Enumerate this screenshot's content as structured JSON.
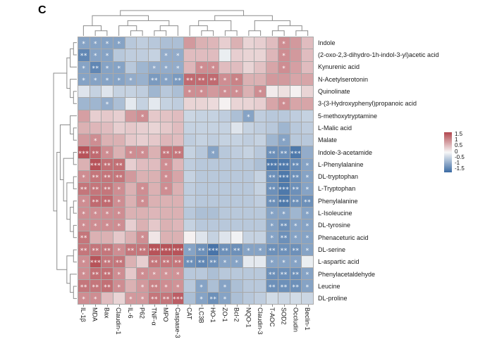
{
  "figure": {
    "panel_label": "C"
  },
  "colors": {
    "positive_max": "#b2474e",
    "midpoint": "#f7f7f7",
    "negative_max": "#3b6ba3",
    "grid_line": "#a9a9a9",
    "dendrogram_line": "#8c8c8c",
    "star": "#ffffff"
  },
  "legend": {
    "ticks": [
      "1.5",
      "1",
      "0.5",
      "0",
      "-0.5",
      "-1",
      "-1.5"
    ]
  },
  "chart_data": {
    "type": "heatmap",
    "title": "",
    "columns": [
      "IL-1β",
      "MDA",
      "Bax",
      "Claudin-1",
      "IL-6",
      "P62",
      "TNF-α",
      "MPO",
      "Caspase-3",
      "CAT",
      "LC3B",
      "HO-1",
      "ZO-1",
      "Bcl-2",
      "NQO-1",
      "Claudin-3",
      "T-AOC",
      "SOD2",
      "Occludin",
      "Beclin-1"
    ],
    "rows": [
      "Indole",
      "(2-oxo-2,3-dihydro-1h-indol-3-yl)acetic acid",
      "Kynurenic acid",
      "N-Acetylserotonin",
      "Quinolinate",
      "3-(3-Hydroxyphenyl)propanoic acid",
      "5-methoxytryptamine",
      "L-Malic acid",
      "Malate",
      "Indole-3-acetamide",
      "L-Phenylalanine",
      "DL-tryptophan",
      "L-Tryptophan",
      "Phenylalanine",
      "L-Isoleucine",
      "DL-tyrosine",
      "Phenaceturic acid",
      "DL-serine",
      "L-aspartic acid",
      "Phenylacetaldehyde",
      "Leucine",
      "DL-proline"
    ],
    "color_scale": {
      "min": -1.5,
      "max": 1.5,
      "legend_ticks": [
        1.5,
        1,
        0.5,
        0,
        -0.5,
        -1,
        -1.5
      ]
    },
    "values": [
      [
        -0.9,
        -0.9,
        -0.9,
        -0.9,
        -0.5,
        -0.45,
        -0.5,
        -0.6,
        -0.6,
        0.8,
        0.6,
        0.55,
        0.35,
        0.6,
        0.3,
        0.35,
        0.5,
        0.9,
        0.8,
        0.5
      ],
      [
        -1.2,
        -0.9,
        -0.9,
        -0.5,
        -0.45,
        -0.45,
        -0.4,
        -0.8,
        -0.8,
        0.5,
        0.5,
        0.5,
        -0.1,
        0.35,
        0.3,
        0.3,
        0.55,
        0.9,
        0.8,
        0.5
      ],
      [
        -0.9,
        -1.2,
        -0.9,
        -0.9,
        -0.5,
        -0.7,
        -0.8,
        -0.8,
        -0.8,
        0.55,
        0.9,
        0.9,
        0.5,
        0.5,
        0.3,
        0.45,
        0.7,
        0.9,
        0.75,
        0.5
      ],
      [
        -0.9,
        -0.9,
        -0.9,
        -0.9,
        -0.8,
        -0.75,
        -1.0,
        -0.9,
        -1.0,
        1.2,
        1.2,
        1.2,
        0.9,
        1.0,
        0.6,
        0.6,
        0.8,
        0.8,
        0.7,
        0.7
      ],
      [
        -0.2,
        -0.4,
        -0.2,
        -0.4,
        -0.4,
        -0.45,
        -0.7,
        -0.5,
        -0.6,
        0.9,
        0.9,
        0.8,
        0.9,
        0.9,
        0.6,
        0.9,
        0.1,
        0.2,
        0.05,
        0.3
      ],
      [
        -0.7,
        -0.7,
        -0.8,
        -0.6,
        -0.15,
        -0.4,
        -0.15,
        -0.4,
        -0.45,
        0.3,
        0.3,
        0.25,
        0.05,
        0.3,
        0.3,
        0.35,
        0.7,
        0.9,
        0.7,
        0.7
      ],
      [
        0.75,
        0.35,
        0.4,
        0.35,
        0.8,
        0.9,
        0.4,
        0.45,
        0.5,
        -0.35,
        -0.4,
        -0.4,
        -0.45,
        -0.6,
        -0.9,
        -0.45,
        -0.5,
        -0.5,
        -0.45,
        -0.4
      ],
      [
        0.6,
        0.55,
        0.5,
        0.35,
        0.4,
        0.35,
        0.3,
        0.4,
        0.5,
        -0.4,
        -0.4,
        -0.4,
        -0.4,
        -0.2,
        -0.4,
        -0.45,
        -0.5,
        -0.7,
        -0.5,
        -0.45
      ],
      [
        0.8,
        0.9,
        0.6,
        0.6,
        0.4,
        0.35,
        0.4,
        0.55,
        0.5,
        -0.45,
        -0.4,
        -0.45,
        -0.4,
        -0.4,
        -0.45,
        -0.4,
        -0.7,
        -0.9,
        -0.5,
        -0.5
      ],
      [
        1.4,
        1.2,
        0.9,
        0.6,
        0.9,
        0.9,
        0.6,
        1.1,
        1.1,
        -0.4,
        -0.5,
        -0.9,
        -0.5,
        -0.45,
        -0.4,
        -0.5,
        -1.1,
        -1.1,
        -1.35,
        -0.8
      ],
      [
        0.6,
        1.4,
        1.15,
        1.15,
        0.35,
        0.5,
        0.5,
        0.9,
        0.55,
        -0.45,
        -0.5,
        -0.5,
        -0.5,
        -0.5,
        -0.5,
        -0.6,
        -1.35,
        -1.35,
        -1.15,
        -0.9
      ],
      [
        0.9,
        1.1,
        1.1,
        1.1,
        0.8,
        0.6,
        0.6,
        0.9,
        0.7,
        -0.4,
        -0.5,
        -0.5,
        -0.5,
        -0.5,
        -0.5,
        -0.4,
        -1.1,
        -1.35,
        -1.1,
        -0.9
      ],
      [
        1.1,
        1.1,
        1.1,
        0.9,
        0.6,
        0.9,
        0.6,
        0.9,
        0.6,
        -0.45,
        -0.5,
        -0.5,
        -0.5,
        -0.5,
        -0.5,
        -0.4,
        -1.1,
        -1.35,
        -1.1,
        -0.9
      ],
      [
        0.9,
        1.2,
        1.2,
        0.9,
        0.6,
        0.9,
        0.6,
        0.6,
        0.6,
        -0.45,
        -0.5,
        -0.5,
        -0.5,
        -0.5,
        -0.5,
        -0.45,
        -1.1,
        -1.35,
        -1.1,
        -1.1
      ],
      [
        0.9,
        0.9,
        0.9,
        0.9,
        0.6,
        0.6,
        0.55,
        0.6,
        0.6,
        -0.5,
        -0.6,
        -0.6,
        -0.5,
        -0.5,
        -0.5,
        -0.5,
        -0.9,
        -0.9,
        -0.7,
        -0.9
      ],
      [
        0.9,
        0.9,
        0.9,
        0.9,
        0.35,
        0.6,
        0.4,
        0.6,
        0.55,
        -0.4,
        -0.5,
        -0.5,
        -0.5,
        -0.5,
        -0.5,
        -0.5,
        -0.9,
        -1.1,
        -0.9,
        -0.9
      ],
      [
        1.1,
        0.6,
        0.6,
        0.4,
        0.6,
        0.9,
        0.15,
        0.6,
        0.6,
        0.05,
        -0.2,
        -0.4,
        -0.2,
        -0.05,
        -0.4,
        -0.4,
        -0.9,
        -1.1,
        -0.9,
        -0.9
      ],
      [
        1.1,
        1.1,
        1.1,
        0.9,
        1.1,
        1.1,
        1.4,
        1.4,
        1.4,
        -0.9,
        -1.1,
        -1.4,
        -1.1,
        -1.1,
        -0.9,
        -0.9,
        -1.1,
        -1.1,
        -1.1,
        -0.9
      ],
      [
        0.9,
        1.4,
        1.1,
        1.1,
        0.6,
        0.35,
        1.1,
        1.1,
        1.1,
        -1.1,
        -1.2,
        -1.1,
        -0.9,
        -0.9,
        -0.15,
        -0.15,
        -0.9,
        -0.9,
        -0.9,
        -0.1
      ],
      [
        0.9,
        1.15,
        1.15,
        0.9,
        0.4,
        0.9,
        0.85,
        0.85,
        0.85,
        -0.5,
        -0.5,
        -0.6,
        -0.5,
        -0.5,
        -0.5,
        -0.5,
        -1.1,
        -1.1,
        -1.1,
        -0.9
      ],
      [
        1.1,
        1.1,
        1.15,
        0.9,
        0.6,
        0.8,
        1.0,
        0.9,
        0.85,
        -0.5,
        -0.9,
        -0.6,
        -0.9,
        -0.6,
        -0.5,
        -0.5,
        -1.1,
        -1.1,
        -1.1,
        -0.9
      ],
      [
        0.9,
        0.9,
        0.5,
        0.3,
        0.8,
        0.8,
        1.1,
        1.1,
        1.3,
        -0.6,
        -0.9,
        -1.1,
        -0.9,
        -0.6,
        -0.5,
        -0.45,
        -0.3,
        -0.35,
        -0.3,
        -0.35
      ]
    ],
    "significance": [
      [
        "*",
        "*",
        "*",
        "*",
        "",
        "",
        "",
        "",
        "",
        "",
        "",
        "",
        "",
        "",
        "",
        "",
        "",
        "*",
        "",
        ""
      ],
      [
        "**",
        "*",
        "*",
        "",
        "",
        "",
        "",
        "*",
        "*",
        "",
        "",
        "",
        "",
        "",
        "",
        "",
        "",
        "*",
        "",
        ""
      ],
      [
        "*",
        "**",
        "*",
        "*",
        "",
        "",
        "*",
        "*",
        "*",
        "",
        "*",
        "*",
        "",
        "",
        "",
        "",
        "",
        "*",
        "",
        ""
      ],
      [
        "*",
        "*",
        "*",
        "*",
        "*",
        "",
        "**",
        "*",
        "**",
        "**",
        "**",
        "**",
        "*",
        "*",
        "",
        "",
        "",
        "",
        "",
        ""
      ],
      [
        "",
        "",
        "",
        "",
        "",
        "",
        "",
        "",
        "",
        "*",
        "*",
        "",
        "*",
        "*",
        "",
        "*",
        "",
        "",
        "",
        ""
      ],
      [
        "",
        "",
        "*",
        "",
        "",
        "",
        "",
        "",
        "",
        "",
        "",
        "",
        "",
        "",
        "",
        "",
        "",
        "*",
        "",
        ""
      ],
      [
        "",
        "",
        "",
        "",
        "",
        "*",
        "",
        "",
        "",
        "",
        "",
        "",
        "",
        "",
        "*",
        "",
        "",
        "",
        "",
        ""
      ],
      [
        "",
        "",
        "",
        "",
        "",
        "",
        "",
        "",
        "",
        "",
        "",
        "",
        "",
        "",
        "",
        "",
        "",
        "",
        "",
        ""
      ],
      [
        "",
        "*",
        "",
        "",
        "",
        "",
        "",
        "",
        "",
        "",
        "",
        "",
        "",
        "",
        "",
        "",
        "",
        "*",
        "",
        ""
      ],
      [
        "***",
        "**",
        "*",
        "",
        "*",
        "*",
        "",
        "**",
        "**",
        "",
        "",
        "*",
        "",
        "",
        "",
        "",
        "**",
        "**",
        "***",
        ""
      ],
      [
        "",
        "***",
        "**",
        "**",
        "",
        "",
        "",
        "*",
        "",
        "",
        "",
        "",
        "",
        "",
        "",
        "",
        "***",
        "***",
        "**",
        "*"
      ],
      [
        "*",
        "**",
        "**",
        "**",
        "",
        "",
        "",
        "*",
        "",
        "",
        "",
        "",
        "",
        "",
        "",
        "",
        "**",
        "***",
        "**",
        "*"
      ],
      [
        "**",
        "**",
        "**",
        "*",
        "",
        "*",
        "",
        "*",
        "",
        "",
        "",
        "",
        "",
        "",
        "",
        "",
        "**",
        "***",
        "**",
        "*"
      ],
      [
        "*",
        "**",
        "**",
        "*",
        "",
        "*",
        "",
        "",
        "",
        "",
        "",
        "",
        "",
        "",
        "",
        "",
        "**",
        "***",
        "**",
        "**"
      ],
      [
        "*",
        "*",
        "*",
        "*",
        "",
        "",
        "",
        "",
        "",
        "",
        "",
        "",
        "",
        "",
        "",
        "",
        "*",
        "*",
        "",
        "*"
      ],
      [
        "*",
        "*",
        "*",
        "*",
        "",
        "",
        "",
        "",
        "",
        "",
        "",
        "",
        "",
        "",
        "",
        "",
        "*",
        "**",
        "*",
        "*"
      ],
      [
        "**",
        "",
        "",
        "",
        "",
        "*",
        "",
        "",
        "",
        "",
        "",
        "",
        "",
        "",
        "",
        "",
        "*",
        "**",
        "*",
        "*"
      ],
      [
        "**",
        "**",
        "**",
        "*",
        "**",
        "**",
        "***",
        "***",
        "***",
        "*",
        "**",
        "***",
        "**",
        "**",
        "*",
        "*",
        "**",
        "**",
        "**",
        "*"
      ],
      [
        "*",
        "***",
        "**",
        "**",
        "",
        "",
        "**",
        "**",
        "**",
        "**",
        "**",
        "**",
        "*",
        "*",
        "",
        "",
        "*",
        "*",
        "*",
        ""
      ],
      [
        "*",
        "**",
        "**",
        "*",
        "",
        "*",
        "*",
        "*",
        "*",
        "",
        "",
        "",
        "",
        "",
        "",
        "",
        "**",
        "**",
        "**",
        "*"
      ],
      [
        "**",
        "**",
        "**",
        "*",
        "",
        "*",
        "**",
        "*",
        "*",
        "",
        "*",
        "",
        "*",
        "",
        "",
        "",
        "**",
        "**",
        "**",
        "*"
      ],
      [
        "*",
        "*",
        "",
        "",
        "*",
        "*",
        "**",
        "**",
        "***",
        "",
        "*",
        "**",
        "*",
        "",
        "",
        "",
        "",
        "",
        "",
        ""
      ]
    ],
    "clustering": {
      "column_tree": [
        [
          [
            1,
            [
              2,
              3
            ]
          ],
          [
            [
              4,
              [
                5,
                6
              ]
            ],
            [
              [
                7,
                8
              ],
              9
            ]
          ]
        ],
        [
          [
            [
              10,
              [
                11,
                12
              ]
            ],
            [
              13,
              14
            ]
          ],
          [
            [
              15,
              16
            ],
            [
              [
                17,
                18
              ],
              [
                19,
                20
              ]
            ]
          ]
        ]
      ],
      "row_tree": [
        [
          [
            [
              1,
              2
            ],
            3
          ],
          [
            4,
            [
              5,
              6
            ]
          ]
        ],
        [
          [
            [
              7,
              [
                8,
                9
              ]
            ],
            [
              [
                10,
                11
              ],
              [
                [
                  12,
                  13
                ],
                [
                  [
                    14,
                    15
                  ],
                  [
                    16,
                    17
                  ]
                ]
              ]
            ]
          ],
          [
            [
              18,
              19
            ],
            [
              20,
              [
                21,
                22
              ]
            ]
          ]
        ]
      ]
    }
  }
}
